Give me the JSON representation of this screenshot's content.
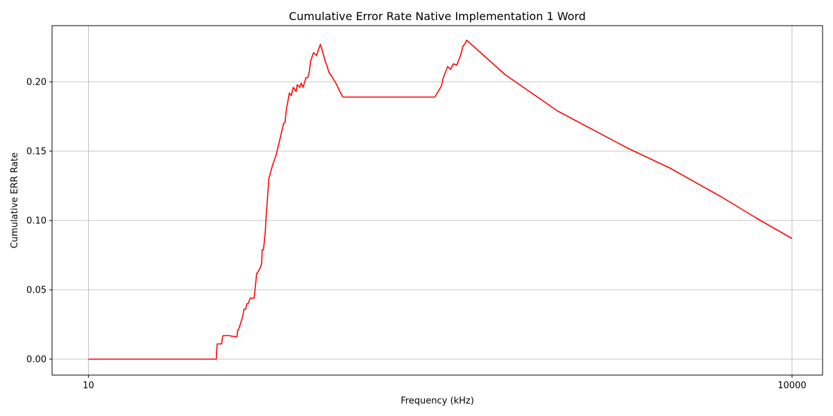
{
  "chart_data": {
    "type": "line",
    "title": "Cumulative Error Rate Native Implementation 1 Word",
    "xlabel": "Frequency (kHz)",
    "ylabel": "Cumulative ERR Rate",
    "x_scale": "log",
    "xlim": [
      7.0,
      13500
    ],
    "ylim": [
      -0.0115,
      0.2405
    ],
    "x_ticks": [
      10,
      10000
    ],
    "x_tick_labels": [
      "10",
      "10000"
    ],
    "y_ticks": [
      0.0,
      0.05,
      0.1,
      0.15,
      0.2
    ],
    "y_tick_labels": [
      "0.00",
      "0.05",
      "0.10",
      "0.15",
      "0.20"
    ],
    "grid": true,
    "legend": "none",
    "series": [
      {
        "color": "#ff0000",
        "x": [
          10,
          35.1,
          35.4,
          37.0,
          37.3,
          37.6,
          39.5,
          43.0,
          43.3,
          43.6,
          44.6,
          45.5,
          46.1,
          46.8,
          47.4,
          48.0,
          49.0,
          50.6,
          50.9,
          52.2,
          52.5,
          54.1,
          54.8,
          55.1,
          55.8,
          56.8,
          57.1,
          57.8,
          58.8,
          61.0,
          63.1,
          64.8,
          68.0,
          69.0,
          69.4,
          70.1,
          70.4,
          71.9,
          73.3,
          74.7,
          76.2,
          76.9,
          77.7,
          79.6,
          80.8,
          82.3,
          84.7,
          86.2,
          87.6,
          88.6,
          91.2,
          94.0,
          96.5,
          97.5,
          99.2,
          100.7,
          102.2,
          104.3,
          106.0,
          109.9,
          112.7,
          115.2,
          117.2,
          121.7,
          300,
          320,
          326,
          340,
          350,
          360,
          372,
          386,
          396,
          402,
          410,
          600,
          1000,
          2000,
          3000,
          5000,
          7000,
          10000
        ],
        "y": [
          0.0,
          0.0,
          0.011,
          0.011,
          0.016,
          0.017,
          0.017,
          0.016,
          0.021,
          0.021,
          0.026,
          0.031,
          0.036,
          0.036,
          0.04,
          0.04,
          0.044,
          0.044,
          0.044,
          0.062,
          0.062,
          0.066,
          0.069,
          0.079,
          0.079,
          0.092,
          0.1,
          0.112,
          0.13,
          0.14,
          0.147,
          0.155,
          0.17,
          0.171,
          0.176,
          0.182,
          0.183,
          0.192,
          0.19,
          0.196,
          0.194,
          0.193,
          0.198,
          0.196,
          0.199,
          0.196,
          0.203,
          0.203,
          0.208,
          0.215,
          0.221,
          0.219,
          0.225,
          0.227,
          0.223,
          0.219,
          0.215,
          0.211,
          0.207,
          0.203,
          0.2,
          0.197,
          0.194,
          0.189,
          0.189,
          0.197,
          0.203,
          0.211,
          0.209,
          0.213,
          0.212,
          0.219,
          0.226,
          0.227,
          0.23,
          0.205,
          0.179,
          0.152,
          0.138,
          0.117,
          0.102,
          0.087
        ]
      }
    ]
  }
}
